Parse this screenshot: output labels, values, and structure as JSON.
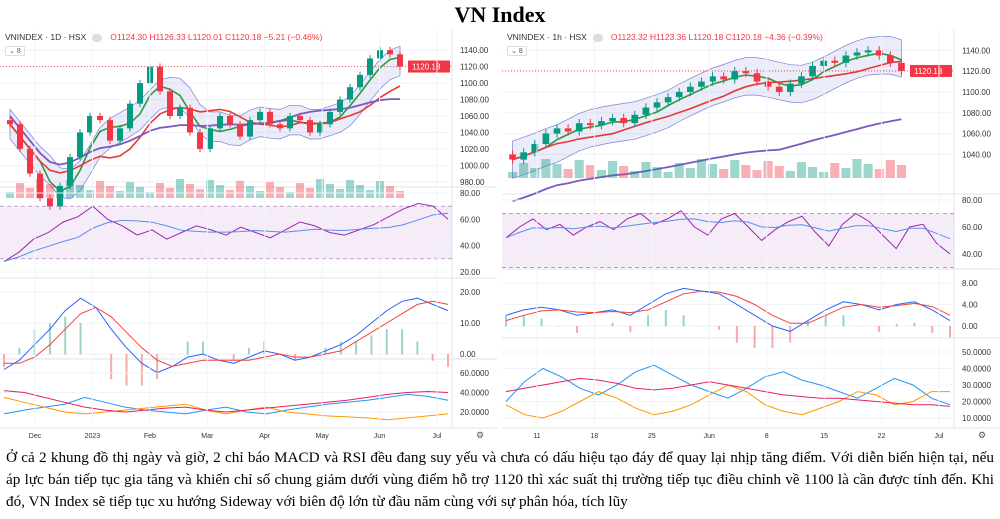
{
  "title": "VN Index",
  "paragraph": "Ở cả 2 khung đồ thị ngày và giờ, 2 chỉ báo MACD và RSI đều đang suy yếu và chưa có dấu hiệu tạo đáy để quay lại nhịp tăng điểm. Với diễn biến hiện tại, nếu áp lực bán tiếp tục gia tăng và khiến chỉ số chung giảm dưới vùng điểm hỗ trợ 1120 thì xác suất thị trường tiếp tục điều chỉnh về 1100 là cần được tính đến. Khi đó, VN Index sẽ tiếp tục xu hướng Sideway với biên độ lớn từ đầu năm cùng với sự phân hóa, tích lũy",
  "colors": {
    "up": "#089981",
    "down": "#f23645",
    "ma_fast": "#2e9a3a",
    "ma_slow": "#e53935",
    "ma_long": "#7e57c2",
    "band": "#7b7fd6",
    "rsi": "#9c27b0",
    "macd": "#2962ff",
    "signal": "#f44336",
    "plus_di": "#2196f3",
    "minus_di": "#ff9800",
    "adx": "#e91e63"
  },
  "chart_data": [
    {
      "type": "candlestick",
      "symbol": "VNINDEX · 1D · HSX",
      "ohlc_label": "O1124.30 H1126.33 L1120.01 C1120.18 −5.21 (−0.46%)",
      "collapse_label": "8",
      "last_price": "1120.18",
      "price_ticks": [
        "1140.00",
        "1120.00",
        "1100.00",
        "1080.00",
        "1060.00",
        "1040.00",
        "1020.00",
        "1000.00",
        "980.00"
      ],
      "price_range": [
        970,
        1150
      ],
      "x_ticks": [
        "Dec",
        "2023",
        "Feb",
        "Mar",
        "Apr",
        "May",
        "Jun",
        "Jul"
      ],
      "close": [
        1050,
        1020,
        990,
        960,
        950,
        975,
        1010,
        1040,
        1060,
        1055,
        1030,
        1045,
        1075,
        1100,
        1120,
        1090,
        1060,
        1070,
        1040,
        1020,
        1045,
        1060,
        1050,
        1035,
        1055,
        1065,
        1050,
        1045,
        1060,
        1055,
        1040,
        1050,
        1065,
        1080,
        1095,
        1110,
        1130,
        1140,
        1135,
        1120.18
      ],
      "rsi_ticks": [
        "80.00",
        "60.00",
        "40.00",
        "20.00"
      ],
      "rsi": [
        28,
        35,
        45,
        50,
        58,
        62,
        70,
        60,
        55,
        48,
        52,
        45,
        50,
        55,
        52,
        48,
        54,
        50,
        46,
        52,
        58,
        55,
        50,
        48,
        52,
        56,
        62,
        68,
        72,
        70,
        60
      ],
      "macd_ticks": [
        "20.00",
        "10.00",
        "0.00"
      ],
      "macd": [
        -5,
        -2,
        3,
        8,
        14,
        18,
        15,
        8,
        2,
        -3,
        -6,
        -4,
        -1,
        0,
        -2,
        -3,
        -1,
        1,
        0,
        -2,
        -1,
        1,
        3,
        6,
        10,
        14,
        17,
        18,
        16,
        14
      ],
      "signal": [
        -3,
        -3,
        -1,
        3,
        8,
        13,
        15,
        12,
        7,
        2,
        -2,
        -4,
        -3,
        -2,
        -2,
        -2,
        -2,
        -1,
        0,
        -1,
        -1,
        0,
        1,
        4,
        7,
        10,
        13,
        16,
        17,
        16
      ],
      "dmi_ticks": [
        "60.0000",
        "40.0000",
        "20.0000"
      ],
      "plus_di": [
        18,
        22,
        25,
        28,
        35,
        30,
        25,
        22,
        20,
        18,
        22,
        25,
        20,
        18,
        22,
        25,
        28,
        30,
        32,
        35,
        38,
        36,
        32
      ],
      "minus_di": [
        35,
        30,
        25,
        20,
        18,
        20,
        22,
        24,
        26,
        28,
        22,
        18,
        22,
        25,
        20,
        18,
        16,
        15,
        14,
        12,
        14,
        16,
        18
      ],
      "adx": [
        42,
        40,
        35,
        30,
        25,
        22,
        20,
        22,
        24,
        25,
        22,
        20,
        22,
        24,
        26,
        28,
        30,
        32,
        35,
        38,
        40,
        41,
        40
      ]
    },
    {
      "type": "candlestick",
      "symbol": "VNINDEX · 1h · HSX",
      "ohlc_label": "O1123.32 H1123.36 L1120.18 C1120.18 −4.36 (−0.39%)",
      "collapse_label": "8",
      "last_price": "1120.18",
      "price_ticks": [
        "1140.00",
        "1120.00",
        "1100.00",
        "1080.00",
        "1060.00",
        "1040.00"
      ],
      "price_range": [
        1025,
        1148
      ],
      "x_ticks": [
        "11",
        "18",
        "25",
        "Jun",
        "8",
        "15",
        "22",
        "Jul"
      ],
      "close": [
        1035,
        1042,
        1050,
        1060,
        1065,
        1062,
        1070,
        1068,
        1072,
        1075,
        1070,
        1078,
        1085,
        1090,
        1095,
        1100,
        1105,
        1110,
        1115,
        1112,
        1120,
        1118,
        1110,
        1105,
        1100,
        1108,
        1115,
        1125,
        1130,
        1128,
        1135,
        1138,
        1140,
        1135,
        1128,
        1120.18
      ],
      "rsi_ticks": [
        "80.00",
        "60.00",
        "40.00"
      ],
      "rsi": [
        52,
        60,
        66,
        58,
        62,
        54,
        60,
        64,
        58,
        66,
        70,
        62,
        66,
        72,
        60,
        54,
        66,
        70,
        60,
        50,
        58,
        64,
        68,
        56,
        46,
        62,
        70,
        64,
        54,
        44,
        60,
        62,
        48,
        40
      ],
      "macd_ticks": [
        "8.00",
        "4.00",
        "0.00"
      ],
      "macd": [
        2,
        3,
        3.5,
        3,
        2,
        2.5,
        3,
        2,
        4,
        6,
        7,
        6.5,
        6,
        4,
        2,
        0,
        -1,
        1,
        3,
        4.5,
        4,
        3,
        4,
        4.5,
        3,
        1
      ],
      "signal": [
        1,
        2,
        2.8,
        3,
        2.6,
        2.5,
        2.7,
        2.5,
        3,
        4.5,
        6,
        6.5,
        6.3,
        5.5,
        4,
        2,
        0.5,
        0.5,
        2,
        3.5,
        4,
        3.5,
        3.8,
        4.2,
        3.6,
        2
      ],
      "dmi_ticks": [
        "50.0000",
        "40.0000",
        "30.0000",
        "20.0000",
        "10.0000"
      ],
      "plus_di": [
        20,
        32,
        40,
        35,
        28,
        24,
        30,
        38,
        42,
        36,
        30,
        26,
        22,
        28,
        35,
        38,
        33,
        30,
        26,
        22,
        28,
        34,
        30,
        22,
        18
      ],
      "minus_di": [
        18,
        12,
        10,
        14,
        20,
        26,
        22,
        16,
        12,
        14,
        18,
        24,
        30,
        26,
        18,
        14,
        12,
        16,
        20,
        26,
        24,
        18,
        20,
        26,
        26
      ],
      "adx": [
        26,
        28,
        30,
        32,
        34,
        33,
        31,
        28,
        27,
        28,
        30,
        32,
        30,
        28,
        26,
        24,
        23,
        22,
        22,
        21,
        20,
        19,
        18,
        18,
        17
      ]
    }
  ]
}
